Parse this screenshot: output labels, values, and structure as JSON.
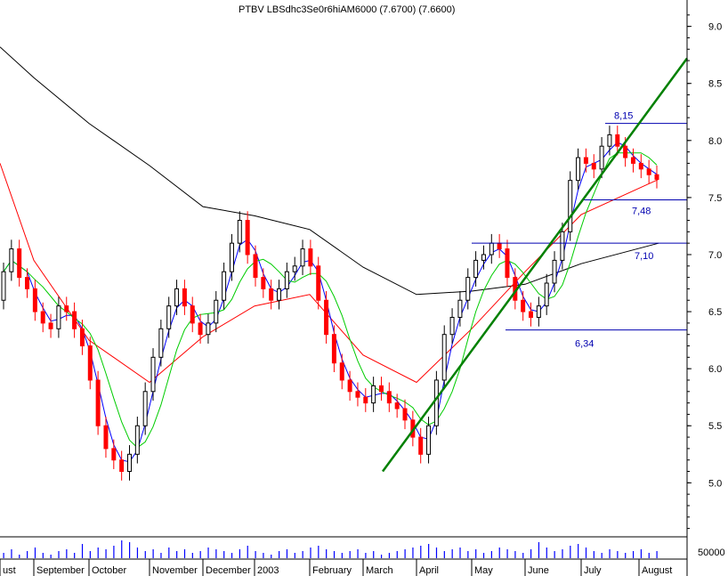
{
  "chart_data": {
    "type": "candlestick",
    "title_parts": [
      "PTBV",
      "LBSdhc3Se0r6hiAM6000",
      "(7.6700)",
      "(7.6600)"
    ],
    "title_display": "PTBV LBSdhc3Se0r6hiAM6000 (7.6700) (7.6600)",
    "xlabel": "",
    "ylabel": "",
    "price_axis": {
      "ylim": [
        4.55,
        9.2
      ],
      "ticks": [
        "5.0",
        "5.5",
        "6.0",
        "6.5",
        "7.0",
        "7.5",
        "8.0",
        "8.5",
        "9.0"
      ]
    },
    "volume_axis": {
      "ticks": [
        "50000"
      ]
    },
    "x_axis": {
      "months": [
        "ust",
        "September",
        "October",
        "November",
        "December",
        "2003",
        "February",
        "March",
        "April",
        "May",
        "June",
        "July",
        "August"
      ]
    },
    "colors": {
      "up_candle": "#000000",
      "down_candle": "#ff0000",
      "ma_short": "#0000ff",
      "ma_mid": "#00cc00",
      "ma_long": "#ff0000",
      "ma_200": "#000000",
      "trendline": "#008000",
      "annotation": "#0000b0",
      "volume": "#0000ff"
    },
    "moving_averages": {
      "ma_200": {
        "month_index": [
          0,
          1,
          2,
          3,
          4,
          5,
          6,
          7,
          8,
          9,
          10,
          11,
          12
        ],
        "values": [
          8.82,
          8.55,
          8.15,
          7.78,
          7.42,
          7.34,
          7.22,
          6.89,
          6.65,
          6.68,
          6.74,
          6.92,
          7.1
        ]
      },
      "ma_long": {
        "month_index": [
          0,
          1,
          2,
          3,
          4,
          5,
          6,
          7,
          8,
          9,
          10,
          11,
          12
        ],
        "values": [
          7.8,
          6.95,
          6.25,
          5.88,
          6.28,
          6.55,
          6.65,
          6.12,
          5.88,
          6.35,
          6.85,
          7.35,
          7.66
        ]
      }
    },
    "annotations": [
      {
        "label": "8,15",
        "y": 8.15
      },
      {
        "label": "7,48",
        "y": 7.48
      },
      {
        "label": "7,10",
        "y": 7.1
      },
      {
        "label": "6,34",
        "y": 6.34
      }
    ],
    "trendline": {
      "start": {
        "x_date": "2003-03-10",
        "y": 5.1
      },
      "end": {
        "x_date": "2003-08-31",
        "y": 8.72
      }
    },
    "series": [
      {
        "name": "",
        "open": [
          6.6,
          6.85,
          7.05,
          6.8,
          6.7,
          6.5,
          6.4,
          6.35,
          6.55,
          6.5,
          6.35,
          6.2,
          5.9,
          5.5,
          5.3,
          5.2,
          5.1,
          5.25,
          5.5,
          5.8,
          6.1,
          6.35,
          6.55,
          6.7,
          6.55,
          6.4,
          6.3,
          6.4,
          6.6,
          6.85,
          7.1,
          7.3,
          7.0,
          6.8,
          6.7,
          6.6,
          6.7,
          6.85,
          6.9,
          7.05,
          6.9,
          6.6,
          6.3,
          6.05,
          5.9,
          5.8,
          5.75,
          5.7,
          5.85,
          5.8,
          5.7,
          5.65,
          5.55,
          5.4,
          5.25,
          5.5,
          5.9,
          6.3,
          6.45,
          6.6,
          6.8,
          6.95,
          7.0,
          7.1,
          7.05,
          6.8,
          6.6,
          6.5,
          6.45,
          6.55,
          6.75,
          6.95,
          7.2,
          7.65,
          7.85,
          7.8,
          7.75,
          7.95,
          8.05,
          7.95,
          7.85,
          7.8,
          7.75,
          7.7
        ],
        "close": [
          6.85,
          7.05,
          6.8,
          6.7,
          6.5,
          6.4,
          6.35,
          6.55,
          6.5,
          6.35,
          6.2,
          5.9,
          5.5,
          5.3,
          5.2,
          5.1,
          5.25,
          5.5,
          5.8,
          6.1,
          6.35,
          6.55,
          6.7,
          6.55,
          6.4,
          6.3,
          6.4,
          6.6,
          6.85,
          7.1,
          7.3,
          7.0,
          6.8,
          6.7,
          6.6,
          6.7,
          6.85,
          6.9,
          7.05,
          6.9,
          6.6,
          6.3,
          6.05,
          5.9,
          5.8,
          5.75,
          5.7,
          5.85,
          5.8,
          5.7,
          5.65,
          5.55,
          5.4,
          5.25,
          5.5,
          5.9,
          6.3,
          6.45,
          6.6,
          6.8,
          6.95,
          7.0,
          7.1,
          7.05,
          6.8,
          6.6,
          6.5,
          6.45,
          6.55,
          6.75,
          6.95,
          7.2,
          7.65,
          7.85,
          7.8,
          7.75,
          7.95,
          8.05,
          7.95,
          7.85,
          7.8,
          7.75,
          7.7,
          7.66
        ]
      }
    ],
    "volume": [
      3,
      5,
      2,
      4,
      6,
      3,
      2,
      4,
      5,
      3,
      8,
      4,
      6,
      5,
      7,
      10,
      9,
      6,
      4,
      5,
      3,
      6,
      4,
      5,
      3,
      4,
      6,
      5,
      4,
      3,
      5,
      7,
      4,
      3,
      2,
      4,
      5,
      3,
      4,
      6,
      7,
      5,
      4,
      3,
      4,
      5,
      3,
      4,
      2,
      3,
      4,
      5,
      6,
      7,
      8,
      6,
      4,
      5,
      6,
      4,
      5,
      3,
      4,
      6,
      5,
      4,
      3,
      5,
      9,
      6,
      4,
      5,
      7,
      8,
      6,
      4,
      3,
      5,
      4,
      3,
      4,
      5,
      3,
      4
    ]
  }
}
